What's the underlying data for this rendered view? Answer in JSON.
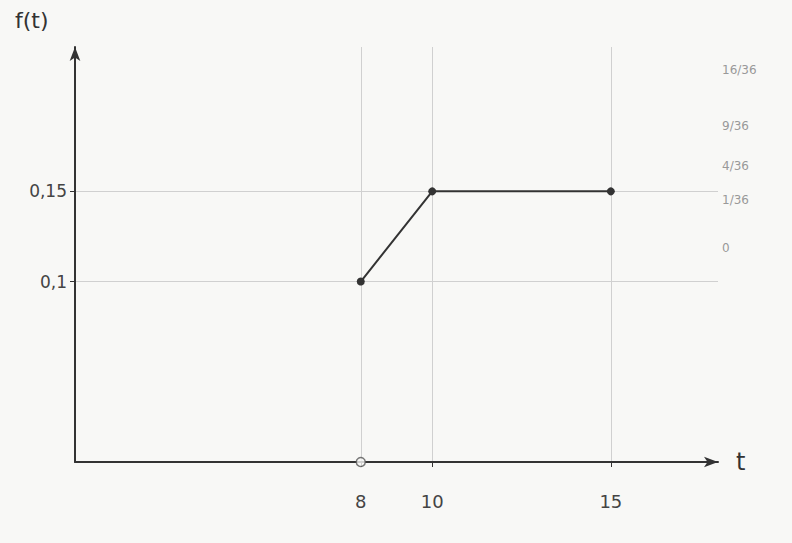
{
  "chart_data": {
    "type": "line",
    "x_label": "t",
    "y_label": "f(t)",
    "xlim": [
      0,
      18
    ],
    "xticks": [
      8,
      10,
      15
    ],
    "ylim": [
      0,
      0.23
    ],
    "yticks": [
      {
        "value": 0.1,
        "label": "0,1"
      },
      {
        "value": 0.15,
        "label": "0,15"
      }
    ],
    "grid": true,
    "series": [
      {
        "type": "line",
        "x": [
          0,
          8
        ],
        "values": [
          0,
          0
        ],
        "marker": "none",
        "color": "#333333"
      },
      {
        "type": "scatter",
        "x": [
          8
        ],
        "values": [
          0
        ],
        "marker": "open",
        "color": "#555555"
      },
      {
        "type": "line",
        "x": [
          8,
          10,
          15
        ],
        "values": [
          0.1,
          0.15,
          0.15
        ],
        "marker": "filled",
        "color": "#333333"
      }
    ],
    "annotations": [
      "16/36",
      "9/36",
      "4/36",
      "1/36",
      "0"
    ]
  }
}
